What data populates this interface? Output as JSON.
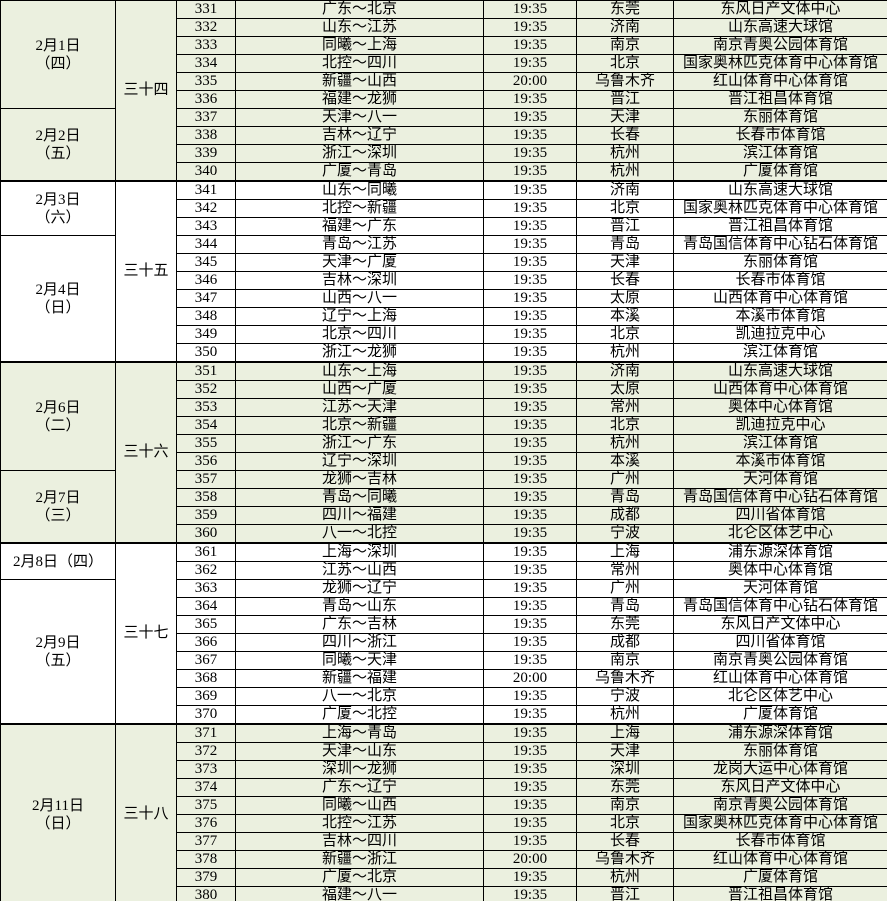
{
  "colors": {
    "block_shaded_bg": "#ebf0df",
    "block_plain_bg": "#ffffff",
    "grid_border": "#000000",
    "text": "#000000"
  },
  "schedule": {
    "blocks": [
      {
        "round_label": "三十四",
        "shaded": true,
        "date_groups": [
          {
            "lines": [
              "2月1日",
              "（四）"
            ],
            "row_span": 6
          },
          {
            "lines": [
              "2月2日",
              "（五）"
            ],
            "row_span": 4
          }
        ],
        "games": [
          {
            "no": "331",
            "match": "广东～北京",
            "time": "19:35",
            "city": "东莞",
            "venue": "东风日产文体中心"
          },
          {
            "no": "332",
            "match": "山东～江苏",
            "time": "19:35",
            "city": "济南",
            "venue": "山东高速大球馆"
          },
          {
            "no": "333",
            "match": "同曦～上海",
            "time": "19:35",
            "city": "南京",
            "venue": "南京青奥公园体育馆"
          },
          {
            "no": "334",
            "match": "北控～四川",
            "time": "19:35",
            "city": "北京",
            "venue": "国家奥林匹克体育中心体育馆"
          },
          {
            "no": "335",
            "match": "新疆～山西",
            "time": "20:00",
            "city": "乌鲁木齐",
            "venue": "红山体育中心体育馆"
          },
          {
            "no": "336",
            "match": "福建～龙狮",
            "time": "19:35",
            "city": "晋江",
            "venue": "晋江祖昌体育馆"
          },
          {
            "no": "337",
            "match": "天津～八一",
            "time": "19:35",
            "city": "天津",
            "venue": "东丽体育馆"
          },
          {
            "no": "338",
            "match": "吉林～辽宁",
            "time": "19:35",
            "city": "长春",
            "venue": "长春市体育馆"
          },
          {
            "no": "339",
            "match": "浙江～深圳",
            "time": "19:35",
            "city": "杭州",
            "venue": "滨江体育馆"
          },
          {
            "no": "340",
            "match": "广厦～青岛",
            "time": "19:35",
            "city": "杭州",
            "venue": "广厦体育馆"
          }
        ]
      },
      {
        "round_label": "三十五",
        "shaded": false,
        "date_groups": [
          {
            "lines": [
              "2月3日",
              "（六）"
            ],
            "row_span": 3
          },
          {
            "lines": [
              "2月4日",
              "（日）"
            ],
            "row_span": 7
          }
        ],
        "games": [
          {
            "no": "341",
            "match": "山东～同曦",
            "time": "19:35",
            "city": "济南",
            "venue": "山东高速大球馆"
          },
          {
            "no": "342",
            "match": "北控～新疆",
            "time": "19:35",
            "city": "北京",
            "venue": "国家奥林匹克体育中心体育馆"
          },
          {
            "no": "343",
            "match": "福建～广东",
            "time": "19:35",
            "city": "晋江",
            "venue": "晋江祖昌体育馆"
          },
          {
            "no": "344",
            "match": "青岛～江苏",
            "time": "19:35",
            "city": "青岛",
            "venue": "青岛国信体育中心钻石体育馆"
          },
          {
            "no": "345",
            "match": "天津～广厦",
            "time": "19:35",
            "city": "天津",
            "venue": "东丽体育馆"
          },
          {
            "no": "346",
            "match": "吉林～深圳",
            "time": "19:35",
            "city": "长春",
            "venue": "长春市体育馆"
          },
          {
            "no": "347",
            "match": "山西～八一",
            "time": "19:35",
            "city": "太原",
            "venue": "山西体育中心体育馆"
          },
          {
            "no": "348",
            "match": "辽宁～上海",
            "time": "19:35",
            "city": "本溪",
            "venue": "本溪市体育馆"
          },
          {
            "no": "349",
            "match": "北京～四川",
            "time": "19:35",
            "city": "北京",
            "venue": "凯迪拉克中心"
          },
          {
            "no": "350",
            "match": "浙江～龙狮",
            "time": "19:35",
            "city": "杭州",
            "venue": "滨江体育馆"
          }
        ]
      },
      {
        "round_label": "三十六",
        "shaded": true,
        "date_groups": [
          {
            "lines": [
              "2月6日",
              "（二）"
            ],
            "row_span": 6
          },
          {
            "lines": [
              "2月7日",
              "（三）"
            ],
            "row_span": 4
          }
        ],
        "games": [
          {
            "no": "351",
            "match": "山东～上海",
            "time": "19:35",
            "city": "济南",
            "venue": "山东高速大球馆"
          },
          {
            "no": "352",
            "match": "山西～广厦",
            "time": "19:35",
            "city": "太原",
            "venue": "山西体育中心体育馆"
          },
          {
            "no": "353",
            "match": "江苏～天津",
            "time": "19:35",
            "city": "常州",
            "venue": "奥体中心体育馆"
          },
          {
            "no": "354",
            "match": "北京～新疆",
            "time": "19:35",
            "city": "北京",
            "venue": "凯迪拉克中心"
          },
          {
            "no": "355",
            "match": "浙江～广东",
            "time": "19:35",
            "city": "杭州",
            "venue": "滨江体育馆"
          },
          {
            "no": "356",
            "match": "辽宁～深圳",
            "time": "19:35",
            "city": "本溪",
            "venue": "本溪市体育馆"
          },
          {
            "no": "357",
            "match": "龙狮～吉林",
            "time": "19:35",
            "city": "广州",
            "venue": "天河体育馆"
          },
          {
            "no": "358",
            "match": "青岛～同曦",
            "time": "19:35",
            "city": "青岛",
            "venue": "青岛国信体育中心钻石体育馆"
          },
          {
            "no": "359",
            "match": "四川～福建",
            "time": "19:35",
            "city": "成都",
            "venue": "四川省体育馆"
          },
          {
            "no": "360",
            "match": "八一～北控",
            "time": "19:35",
            "city": "宁波",
            "venue": "北仑区体艺中心"
          }
        ]
      },
      {
        "round_label": "三十七",
        "shaded": false,
        "date_groups": [
          {
            "lines": [
              "2月8日（四）"
            ],
            "row_span": 2
          },
          {
            "lines": [
              "2月9日",
              "（五）"
            ],
            "row_span": 8
          }
        ],
        "games": [
          {
            "no": "361",
            "match": "上海～深圳",
            "time": "19:35",
            "city": "上海",
            "venue": "浦东源深体育馆"
          },
          {
            "no": "362",
            "match": "江苏～山西",
            "time": "19:35",
            "city": "常州",
            "venue": "奥体中心体育馆"
          },
          {
            "no": "363",
            "match": "龙狮～辽宁",
            "time": "19:35",
            "city": "广州",
            "venue": "天河体育馆"
          },
          {
            "no": "364",
            "match": "青岛～山东",
            "time": "19:35",
            "city": "青岛",
            "venue": "青岛国信体育中心钻石体育馆"
          },
          {
            "no": "365",
            "match": "广东～吉林",
            "time": "19:35",
            "city": "东莞",
            "venue": "东风日产文体中心"
          },
          {
            "no": "366",
            "match": "四川～浙江",
            "time": "19:35",
            "city": "成都",
            "venue": "四川省体育馆"
          },
          {
            "no": "367",
            "match": "同曦～天津",
            "time": "19:35",
            "city": "南京",
            "venue": "南京青奥公园体育馆"
          },
          {
            "no": "368",
            "match": "新疆～福建",
            "time": "20:00",
            "city": "乌鲁木齐",
            "venue": "红山体育中心体育馆"
          },
          {
            "no": "369",
            "match": "八一～北京",
            "time": "19:35",
            "city": "宁波",
            "venue": "北仑区体艺中心"
          },
          {
            "no": "370",
            "match": "广厦～北控",
            "time": "19:35",
            "city": "杭州",
            "venue": "广厦体育馆"
          }
        ]
      },
      {
        "round_label": "三十八",
        "shaded": true,
        "date_groups": [
          {
            "lines": [
              "2月11日",
              "（日）"
            ],
            "row_span": 10
          }
        ],
        "games": [
          {
            "no": "371",
            "match": "上海～青岛",
            "time": "19:35",
            "city": "上海",
            "venue": "浦东源深体育馆"
          },
          {
            "no": "372",
            "match": "天津～山东",
            "time": "19:35",
            "city": "天津",
            "venue": "东丽体育馆"
          },
          {
            "no": "373",
            "match": "深圳～龙狮",
            "time": "19:35",
            "city": "深圳",
            "venue": "龙岗大运中心体育馆"
          },
          {
            "no": "374",
            "match": "广东～辽宁",
            "time": "19:35",
            "city": "东莞",
            "venue": "东风日产文体中心"
          },
          {
            "no": "375",
            "match": "同曦～山西",
            "time": "19:35",
            "city": "南京",
            "venue": "南京青奥公园体育馆"
          },
          {
            "no": "376",
            "match": "北控～江苏",
            "time": "19:35",
            "city": "北京",
            "venue": "国家奥林匹克体育中心体育馆"
          },
          {
            "no": "377",
            "match": "吉林～四川",
            "time": "19:35",
            "city": "长春",
            "venue": "长春市体育馆"
          },
          {
            "no": "378",
            "match": "新疆～浙江",
            "time": "20:00",
            "city": "乌鲁木齐",
            "venue": "红山体育中心体育馆"
          },
          {
            "no": "379",
            "match": "广厦～北京",
            "time": "19:35",
            "city": "杭州",
            "venue": "广厦体育馆"
          },
          {
            "no": "380",
            "match": "福建～八一",
            "time": "19:35",
            "city": "晋江",
            "venue": "晋江祖昌体育馆"
          }
        ]
      }
    ]
  }
}
